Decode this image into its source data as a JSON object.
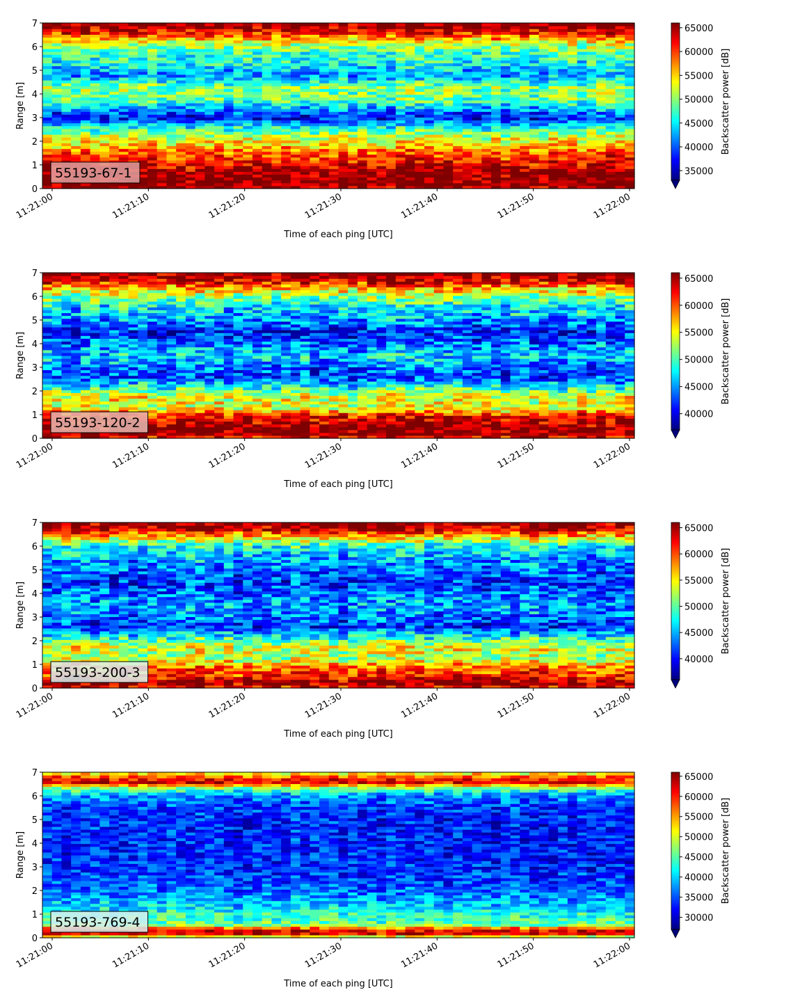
{
  "colormap": [
    "#00007f",
    "#0000ff",
    "#007fff",
    "#00ffff",
    "#7fff7f",
    "#ffff00",
    "#ff7f00",
    "#ff0000",
    "#7f0000"
  ],
  "chart_data": [
    {
      "type": "heatmap",
      "label": "55193-67-1",
      "label_box_color": "#e0a0a0",
      "xlabel": "Time of each ping [UTC]",
      "ylabel": "Range [m]",
      "colorbar_label": "Backscatter power [dB]",
      "ylim": [
        0,
        7
      ],
      "yticks": [
        "0",
        "1",
        "2",
        "3",
        "4",
        "5",
        "6",
        "7"
      ],
      "xticks": [
        "11:21:00",
        "11:21:10",
        "11:21:20",
        "11:21:30",
        "11:21:40",
        "11:21:50",
        "11:22:00"
      ],
      "clim": [
        33000,
        66000
      ],
      "cbar_ticks": [
        35000,
        40000,
        45000,
        50000,
        55000,
        60000,
        65000
      ],
      "cbar_ticklabels": [
        "35000",
        "40000",
        "45000",
        "50000",
        "55000",
        "60000",
        "65000"
      ],
      "profile": [
        {
          "range": 0.0,
          "value": 65000
        },
        {
          "range": 0.2,
          "value": 66000
        },
        {
          "range": 0.6,
          "value": 66000
        },
        {
          "range": 1.0,
          "value": 63000
        },
        {
          "range": 1.4,
          "value": 60000
        },
        {
          "range": 1.8,
          "value": 56000
        },
        {
          "range": 2.2,
          "value": 52000
        },
        {
          "range": 2.6,
          "value": 46000
        },
        {
          "range": 3.0,
          "value": 37000
        },
        {
          "range": 3.4,
          "value": 43000
        },
        {
          "range": 3.8,
          "value": 49000
        },
        {
          "range": 4.3,
          "value": 50000
        },
        {
          "range": 4.8,
          "value": 42000
        },
        {
          "range": 5.3,
          "value": 46000
        },
        {
          "range": 5.8,
          "value": 48000
        },
        {
          "range": 6.2,
          "value": 53000
        },
        {
          "range": 6.6,
          "value": 62000
        },
        {
          "range": 7.0,
          "value": 66000
        }
      ]
    },
    {
      "type": "heatmap",
      "label": "55193-120-2",
      "label_box_color": "#e8b8b0",
      "xlabel": "Time of each ping [UTC]",
      "ylabel": "Range [m]",
      "colorbar_label": "Backscatter power [dB]",
      "ylim": [
        0,
        7
      ],
      "yticks": [
        "0",
        "1",
        "2",
        "3",
        "4",
        "5",
        "6",
        "7"
      ],
      "xticks": [
        "11:21:00",
        "11:21:10",
        "11:21:20",
        "11:21:30",
        "11:21:40",
        "11:21:50",
        "11:22:00"
      ],
      "clim": [
        37000,
        66000
      ],
      "cbar_ticks": [
        40000,
        45000,
        50000,
        55000,
        60000,
        65000
      ],
      "cbar_ticklabels": [
        "40000",
        "45000",
        "50000",
        "55000",
        "60000",
        "65000"
      ],
      "profile": [
        {
          "range": 0.0,
          "value": 62000
        },
        {
          "range": 0.2,
          "value": 66000
        },
        {
          "range": 0.5,
          "value": 66000
        },
        {
          "range": 0.9,
          "value": 63000
        },
        {
          "range": 1.3,
          "value": 54000
        },
        {
          "range": 1.8,
          "value": 55000
        },
        {
          "range": 2.2,
          "value": 48000
        },
        {
          "range": 2.6,
          "value": 42000
        },
        {
          "range": 3.0,
          "value": 44000
        },
        {
          "range": 3.5,
          "value": 47000
        },
        {
          "range": 4.0,
          "value": 44000
        },
        {
          "range": 4.5,
          "value": 41000
        },
        {
          "range": 5.0,
          "value": 45000
        },
        {
          "range": 5.5,
          "value": 47000
        },
        {
          "range": 6.0,
          "value": 52000
        },
        {
          "range": 6.4,
          "value": 58000
        },
        {
          "range": 6.7,
          "value": 64000
        },
        {
          "range": 7.0,
          "value": 66000
        }
      ]
    },
    {
      "type": "heatmap",
      "label": "55193-200-3",
      "label_box_color": "#d8eef0",
      "xlabel": "Time of each ping [UTC]",
      "ylabel": "Range [m]",
      "colorbar_label": "Backscatter power [dB]",
      "ylim": [
        0,
        7
      ],
      "yticks": [
        "0",
        "1",
        "2",
        "3",
        "4",
        "5",
        "6",
        "7"
      ],
      "xticks": [
        "11:21:00",
        "11:21:10",
        "11:21:20",
        "11:21:30",
        "11:21:40",
        "11:21:50",
        "11:22:00"
      ],
      "clim": [
        36000,
        66000
      ],
      "cbar_ticks": [
        40000,
        45000,
        50000,
        55000,
        60000,
        65000
      ],
      "cbar_ticklabels": [
        "40000",
        "45000",
        "50000",
        "55000",
        "60000",
        "65000"
      ],
      "profile": [
        {
          "range": 0.0,
          "value": 62000
        },
        {
          "range": 0.25,
          "value": 66000
        },
        {
          "range": 0.45,
          "value": 62000
        },
        {
          "range": 0.9,
          "value": 59000
        },
        {
          "range": 1.3,
          "value": 52000
        },
        {
          "range": 1.7,
          "value": 55000
        },
        {
          "range": 2.1,
          "value": 49000
        },
        {
          "range": 2.6,
          "value": 41000
        },
        {
          "range": 3.0,
          "value": 43000
        },
        {
          "range": 3.5,
          "value": 45000
        },
        {
          "range": 4.0,
          "value": 43000
        },
        {
          "range": 4.5,
          "value": 41000
        },
        {
          "range": 5.0,
          "value": 43000
        },
        {
          "range": 5.5,
          "value": 45000
        },
        {
          "range": 6.0,
          "value": 48000
        },
        {
          "range": 6.4,
          "value": 56000
        },
        {
          "range": 6.7,
          "value": 64000
        },
        {
          "range": 7.0,
          "value": 66000
        }
      ]
    },
    {
      "type": "heatmap",
      "label": "55193-769-4",
      "label_box_color": "#d8eef0",
      "xlabel": "Time of each ping [UTC]",
      "ylabel": "Range [m]",
      "colorbar_label": "Backscatter power [dB]",
      "ylim": [
        0,
        7
      ],
      "yticks": [
        "0",
        "1",
        "2",
        "3",
        "4",
        "5",
        "6",
        "7"
      ],
      "xticks": [
        "11:21:00",
        "11:21:10",
        "11:21:20",
        "11:21:30",
        "11:21:40",
        "11:21:50",
        "11:22:00"
      ],
      "clim": [
        27000,
        66000
      ],
      "cbar_ticks": [
        30000,
        35000,
        40000,
        45000,
        50000,
        55000,
        60000,
        65000
      ],
      "cbar_ticklabels": [
        "30000",
        "35000",
        "40000",
        "45000",
        "50000",
        "55000",
        "60000",
        "65000"
      ],
      "profile": [
        {
          "range": 0.0,
          "value": 45000
        },
        {
          "range": 0.2,
          "value": 64000
        },
        {
          "range": 0.35,
          "value": 62000
        },
        {
          "range": 0.55,
          "value": 46000
        },
        {
          "range": 1.0,
          "value": 43000
        },
        {
          "range": 1.5,
          "value": 39000
        },
        {
          "range": 2.0,
          "value": 36000
        },
        {
          "range": 2.6,
          "value": 34000
        },
        {
          "range": 3.2,
          "value": 33000
        },
        {
          "range": 4.0,
          "value": 33000
        },
        {
          "range": 4.8,
          "value": 33000
        },
        {
          "range": 5.5,
          "value": 34000
        },
        {
          "range": 6.0,
          "value": 37000
        },
        {
          "range": 6.3,
          "value": 45000
        },
        {
          "range": 6.6,
          "value": 63000
        },
        {
          "range": 6.8,
          "value": 58000
        },
        {
          "range": 7.0,
          "value": 50000
        }
      ]
    }
  ]
}
